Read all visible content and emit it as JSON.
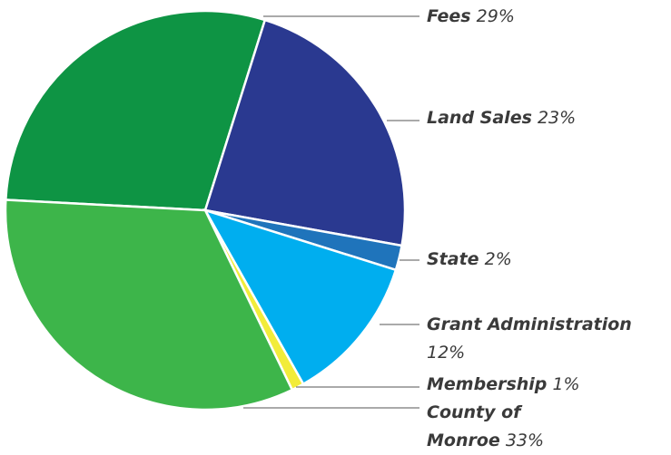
{
  "chart_data": {
    "type": "pie",
    "categories": [
      "Fees",
      "Land Sales",
      "State",
      "Grant Administration",
      "Membership",
      "County of Monroe"
    ],
    "values": [
      29,
      23,
      2,
      12,
      1,
      33
    ],
    "value_labels": [
      "29%",
      "23%",
      "2%",
      "12%",
      "1%",
      "33%"
    ],
    "colors": [
      "#0e9444",
      "#2a3990",
      "#1f74bb",
      "#00aeef",
      "#f2ec3a",
      "#3db54a"
    ]
  }
}
